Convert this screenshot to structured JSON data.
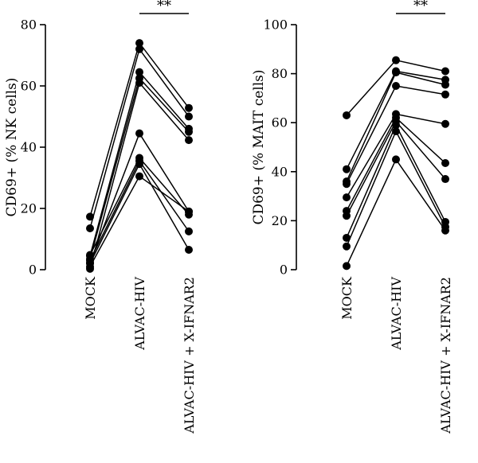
{
  "chart_data": [
    {
      "type": "scatter",
      "style": "paired-points-connected",
      "ylabel": "CD69+ (% NK cells)",
      "xlabel": "",
      "categories": [
        "MOCK",
        "ALVAC-HIV",
        "ALVAC-HIV + X-IFNAR2"
      ],
      "ylim": [
        0,
        80
      ],
      "yticks": [
        0,
        20,
        40,
        60,
        80
      ],
      "significance": {
        "from": 1,
        "to": 2,
        "label": "**"
      },
      "pairs": [
        [
          17.3,
          74.0,
          52.8
        ],
        [
          13.5,
          72.0,
          50.0
        ],
        [
          4.5,
          64.5,
          46.0
        ],
        [
          3.5,
          62.5,
          45.0
        ],
        [
          0.3,
          61.0,
          42.3
        ],
        [
          2.3,
          44.5,
          19.0
        ],
        [
          4.8,
          36.5,
          18.0
        ],
        [
          3.0,
          35.5,
          12.5
        ],
        [
          2.0,
          34.5,
          6.5
        ],
        [
          1.0,
          30.5,
          19.0
        ]
      ]
    },
    {
      "type": "scatter",
      "style": "paired-points-connected",
      "ylabel": "CD69+ (% MAIT cells)",
      "xlabel": "",
      "categories": [
        "MOCK",
        "ALVAC-HIV",
        "ALVAC-HIV + X-IFNAR2"
      ],
      "ylim": [
        0,
        100
      ],
      "yticks": [
        0,
        20,
        40,
        60,
        80,
        100
      ],
      "significance": {
        "from": 1,
        "to": 2,
        "label": "**"
      },
      "pairs": [
        [
          63.0,
          85.5,
          81.0
        ],
        [
          41.0,
          81.0,
          77.5
        ],
        [
          36.0,
          80.5,
          75.5
        ],
        [
          35.0,
          75.0,
          71.5
        ],
        [
          29.5,
          63.5,
          59.5
        ],
        [
          24.0,
          62.0,
          43.5
        ],
        [
          22.0,
          60.5,
          37.0
        ],
        [
          13.0,
          59.0,
          19.5
        ],
        [
          9.5,
          56.5,
          17.5
        ],
        [
          1.5,
          45.0,
          16.0
        ]
      ]
    }
  ]
}
